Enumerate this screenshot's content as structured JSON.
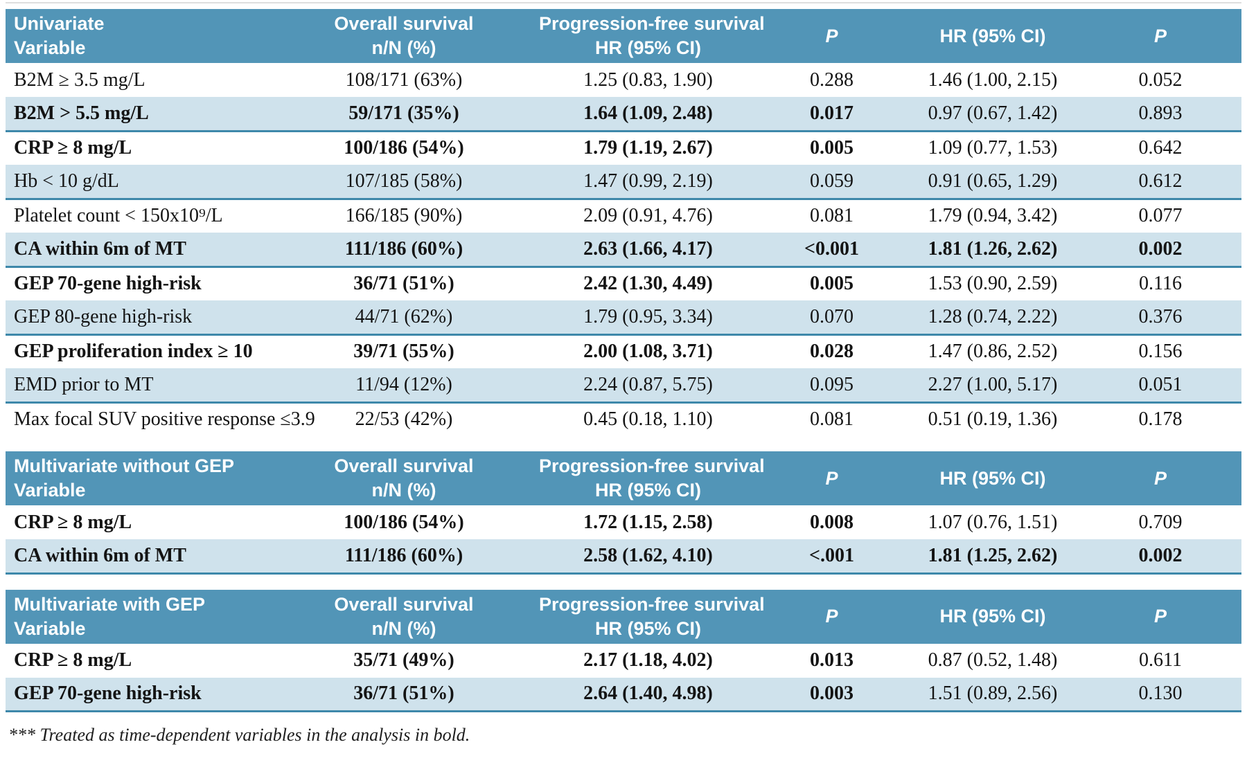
{
  "colors": {
    "header_bg": "#5295B7",
    "shaded_row_bg": "#CFE2EC",
    "row_rule": "#3E88AA",
    "header_text": "#FFFFFF",
    "body_text": "#141414"
  },
  "column_semantics": [
    "variable",
    "n_over_N_percent",
    "os_hr_95ci",
    "os_p",
    "pfs_hr_95ci",
    "pfs_p"
  ],
  "tables": [
    {
      "id": "univariate",
      "header": {
        "col1_line1": "Univariate",
        "col1_line2": "Variable",
        "col2_line1": "Overall survival",
        "col2_line2": "n/N (%)",
        "col3_line1": "Progression-free survival",
        "col3_line2": "HR (95% CI)",
        "col4_line2": "P",
        "col5_line2": "HR (95% CI)",
        "col6_line2": "P"
      },
      "rows": [
        {
          "cells": [
            "B2M ≥ 3.5 mg/L",
            "108/171 (63%)",
            "1.25 (0.83, 1.90)",
            "0.288",
            "1.46 (1.00, 2.15)",
            "0.052"
          ],
          "bold": [
            0,
            0,
            0,
            0,
            0,
            0
          ],
          "shaded": false
        },
        {
          "cells": [
            "B2M > 5.5 mg/L",
            "59/171 (35%)",
            "1.64 (1.09, 2.48)",
            "0.017",
            "0.97 (0.67, 1.42)",
            "0.893"
          ],
          "bold": [
            1,
            1,
            1,
            1,
            0,
            0
          ],
          "shaded": true
        },
        {
          "cells": [
            "CRP ≥ 8 mg/L",
            "100/186 (54%)",
            "1.79 (1.19, 2.67)",
            "0.005",
            "1.09 (0.77, 1.53)",
            "0.642"
          ],
          "bold": [
            1,
            1,
            1,
            1,
            0,
            0
          ],
          "shaded": false
        },
        {
          "cells": [
            "Hb < 10 g/dL",
            "107/185 (58%)",
            "1.47 (0.99, 2.19)",
            "0.059",
            "0.91 (0.65, 1.29)",
            "0.612"
          ],
          "bold": [
            0,
            0,
            0,
            0,
            0,
            0
          ],
          "shaded": true
        },
        {
          "cells": [
            "Platelet count < 150x10⁹/L",
            "166/185 (90%)",
            "2.09 (0.91, 4.76)",
            "0.081",
            "1.79 (0.94, 3.42)",
            "0.077"
          ],
          "bold": [
            0,
            0,
            0,
            0,
            0,
            0
          ],
          "shaded": false
        },
        {
          "cells": [
            "CA within 6m of MT",
            "111/186 (60%)",
            "2.63 (1.66, 4.17)",
            "<0.001",
            "1.81 (1.26, 2.62)",
            "0.002"
          ],
          "bold": [
            1,
            1,
            1,
            1,
            1,
            1
          ],
          "shaded": true
        },
        {
          "cells": [
            "GEP 70-gene high-risk",
            "36/71 (51%)",
            "2.42 (1.30, 4.49)",
            "0.005",
            "1.53 (0.90, 2.59)",
            "0.116"
          ],
          "bold": [
            1,
            1,
            1,
            1,
            0,
            0
          ],
          "shaded": false
        },
        {
          "cells": [
            "GEP 80-gene high-risk",
            "44/71 (62%)",
            "1.79 (0.95, 3.34)",
            "0.070",
            "1.28 (0.74, 2.22)",
            "0.376"
          ],
          "bold": [
            0,
            0,
            0,
            0,
            0,
            0
          ],
          "shaded": true
        },
        {
          "cells": [
            "GEP proliferation index ≥ 10",
            "39/71 (55%)",
            "2.00 (1.08, 3.71)",
            "0.028",
            "1.47 (0.86, 2.52)",
            "0.156"
          ],
          "bold": [
            1,
            1,
            1,
            1,
            0,
            0
          ],
          "shaded": false
        },
        {
          "cells": [
            "EMD prior to MT",
            "11/94 (12%)",
            "2.24 (0.87, 5.75)",
            "0.095",
            "2.27 (1.00, 5.17)",
            "0.051"
          ],
          "bold": [
            0,
            0,
            0,
            0,
            0,
            0
          ],
          "shaded": true
        },
        {
          "cells": [
            "Max focal SUV positive response ≤3.9",
            "22/53 (42%)",
            "0.45 (0.18, 1.10)",
            "0.081",
            "0.51 (0.19, 1.36)",
            "0.178"
          ],
          "bold": [
            0,
            0,
            0,
            0,
            0,
            0
          ],
          "shaded": false
        }
      ]
    },
    {
      "id": "multivariate-without-gep",
      "header": {
        "col1_line1": "Multivariate without GEP",
        "col1_line2": "Variable",
        "col2_line1": "Overall survival",
        "col2_line2": "n/N (%)",
        "col3_line1": "Progression-free survival",
        "col3_line2": "HR (95% CI)",
        "col4_line2": "P",
        "col5_line2": "HR (95% CI)",
        "col6_line2": "P"
      },
      "rows": [
        {
          "cells": [
            "CRP ≥ 8 mg/L",
            "100/186 (54%)",
            "1.72 (1.15, 2.58)",
            "0.008",
            "1.07 (0.76, 1.51)",
            "0.709"
          ],
          "bold": [
            1,
            1,
            1,
            1,
            0,
            0
          ],
          "shaded": false
        },
        {
          "cells": [
            "CA within 6m of MT",
            "111/186 (60%)",
            "2.58 (1.62, 4.10)",
            "<.001",
            "1.81 (1.25, 2.62)",
            "0.002"
          ],
          "bold": [
            1,
            1,
            1,
            1,
            1,
            1
          ],
          "shaded": true
        }
      ]
    },
    {
      "id": "multivariate-with-gep",
      "header": {
        "col1_line1": "Multivariate with GEP",
        "col1_line2": "Variable",
        "col2_line1": "Overall survival",
        "col2_line2": "n/N (%)",
        "col3_line1": "Progression-free survival",
        "col3_line2": "HR (95% CI)",
        "col4_line2": "P",
        "col5_line2": "HR (95% CI)",
        "col6_line2": "P"
      },
      "rows": [
        {
          "cells": [
            "CRP ≥ 8 mg/L",
            "35/71 (49%)",
            "2.17 (1.18, 4.02)",
            "0.013",
            "0.87 (0.52, 1.48)",
            "0.611"
          ],
          "bold": [
            1,
            1,
            1,
            1,
            0,
            0
          ],
          "shaded": false
        },
        {
          "cells": [
            "GEP 70-gene high-risk",
            "36/71 (51%)",
            "2.64 (1.40, 4.98)",
            "0.003",
            "1.51 (0.89, 2.56)",
            "0.130"
          ],
          "bold": [
            1,
            1,
            1,
            1,
            0,
            0
          ],
          "shaded": true
        }
      ]
    }
  ],
  "footnote": "*** Treated as time-dependent variables in the analysis in bold."
}
